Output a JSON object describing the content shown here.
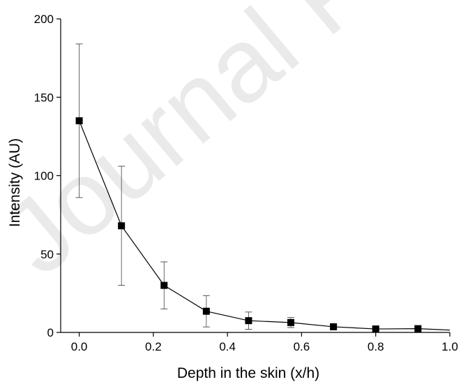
{
  "watermark": "Journal Pre-proof",
  "chart_data": {
    "type": "line",
    "title": "",
    "xlabel": "Depth in the skin (x/h)",
    "ylabel": "Intensity (AU)",
    "xlim": [
      -0.05,
      1.0
    ],
    "ylim": [
      0,
      200
    ],
    "x_ticks": [
      0.0,
      0.2,
      0.4,
      0.6,
      0.8,
      1.0
    ],
    "x_tick_labels": [
      "0.0",
      "0.2",
      "0.4",
      "0.6",
      "0.8",
      "1.0"
    ],
    "y_ticks": [
      0,
      50,
      100,
      150,
      200
    ],
    "y_tick_labels": [
      "0",
      "50",
      "100",
      "150",
      "200"
    ],
    "grid": false,
    "legend": "none",
    "series": [
      {
        "marker": "square",
        "color": "#000000",
        "x": [
          0.0,
          0.114,
          0.229,
          0.343,
          0.457,
          0.571,
          0.686,
          0.8,
          0.914
        ],
        "y": [
          135,
          68,
          30,
          13.5,
          7.5,
          6.3,
          3.6,
          2.2,
          2.4
        ],
        "error": [
          49,
          38,
          15,
          10,
          5.5,
          3.2,
          1.2,
          0.8,
          1.5
        ]
      }
    ],
    "tail": {
      "x": [
        0.914,
        1.0
      ],
      "y": [
        2.4,
        1.5
      ]
    }
  }
}
